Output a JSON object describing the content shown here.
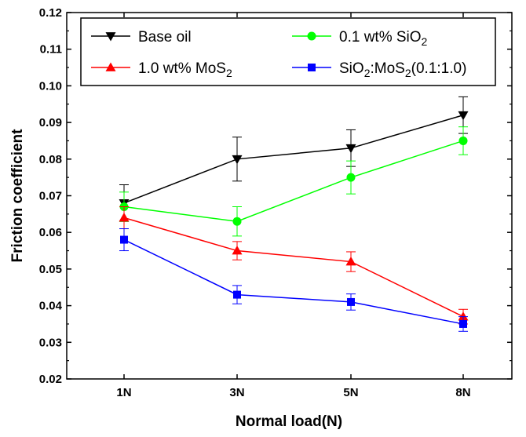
{
  "chart_data": {
    "type": "line",
    "xlabel": "Normal load(N)",
    "ylabel": "Friction coefficient",
    "categories": [
      "1N",
      "3N",
      "5N",
      "8N"
    ],
    "ylim": [
      0.02,
      0.12
    ],
    "yticks": [
      "0.02",
      "0.03",
      "0.04",
      "0.05",
      "0.06",
      "0.07",
      "0.08",
      "0.09",
      "0.10",
      "0.11",
      "0.12"
    ],
    "grid": false,
    "legend_position": "top",
    "series": [
      {
        "name": "Base oil",
        "legend": {
          "main": "Base oil",
          "parts": []
        },
        "color": "#000000",
        "marker": "triangle-down",
        "values": [
          0.068,
          0.08,
          0.083,
          0.092
        ],
        "errors": [
          0.005,
          0.006,
          0.005,
          0.005
        ]
      },
      {
        "name": "0.1 wt% SiO2",
        "legend": {
          "main": "0.1 wt% SiO",
          "parts": [
            {
              "t": "2",
              "sub": true
            }
          ]
        },
        "color": "#00ff00",
        "marker": "circle",
        "values": [
          0.067,
          0.063,
          0.075,
          0.085
        ],
        "errors": [
          0.004,
          0.004,
          0.0045,
          0.0038
        ]
      },
      {
        "name": "1.0 wt% MoS2",
        "legend": {
          "main": "1.0 wt% MoS",
          "parts": [
            {
              "t": "2",
              "sub": true
            }
          ]
        },
        "color": "#ff0000",
        "marker": "triangle-up",
        "values": [
          0.064,
          0.055,
          0.052,
          0.037
        ],
        "errors": [
          0.003,
          0.0025,
          0.0027,
          0.002
        ]
      },
      {
        "name": "SiO2:MoS2(0.1:1.0)",
        "legend": {
          "main": "SiO",
          "parts": [
            {
              "t": "2",
              "sub": true
            },
            {
              "t": ":MoS",
              "sub": false
            },
            {
              "t": "2",
              "sub": true
            },
            {
              "t": "(0.1:1.0)",
              "sub": false
            }
          ]
        },
        "color": "#0000ff",
        "marker": "square",
        "values": [
          0.058,
          0.043,
          0.041,
          0.035
        ],
        "errors": [
          0.003,
          0.0025,
          0.0022,
          0.002
        ]
      }
    ]
  }
}
